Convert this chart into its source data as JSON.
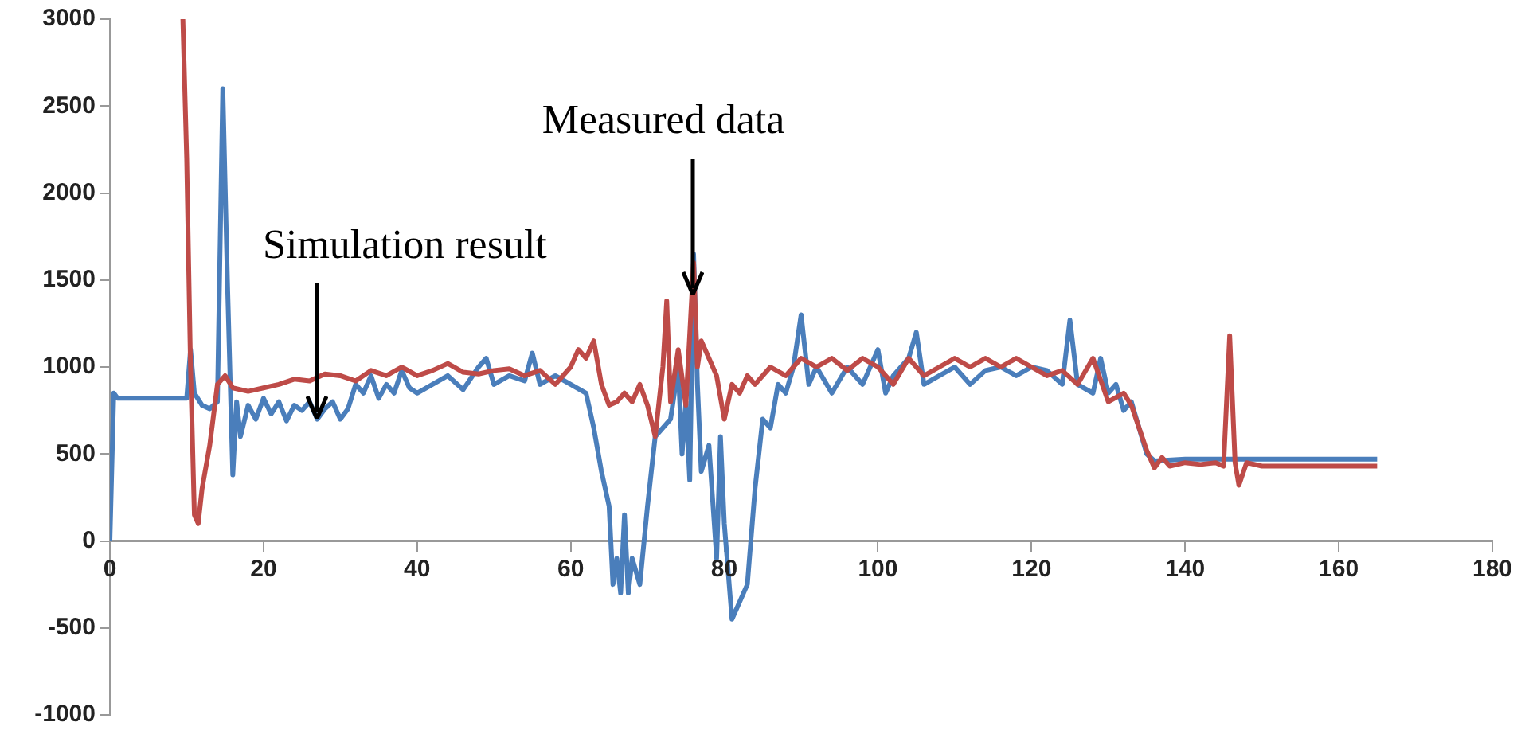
{
  "chart_data": {
    "type": "line",
    "xlim": [
      0,
      180
    ],
    "xticks": [
      0,
      20,
      40,
      60,
      80,
      100,
      120,
      140,
      160,
      180
    ],
    "ylim": [
      -1000,
      3000
    ],
    "yticks": [
      -1000,
      -500,
      0,
      500,
      1000,
      1500,
      2000,
      2500,
      3000
    ],
    "grid": false,
    "legend": false,
    "marker": "none",
    "annotations": [
      {
        "text": "Simulation result",
        "x": 27,
        "y": 700
      },
      {
        "text": "Measured data",
        "x": 76,
        "y": 1420
      }
    ],
    "series": [
      {
        "color": "#4a7ebb",
        "x": [
          0,
          0.5,
          1,
          5,
          10,
          10.5,
          11,
          12,
          13,
          14,
          14.7,
          15.3,
          16,
          16.5,
          17,
          18,
          19,
          20,
          21,
          22,
          23,
          24,
          25,
          26,
          27,
          28,
          29,
          30,
          31,
          32,
          33,
          34,
          35,
          36,
          37,
          38,
          39,
          40,
          42,
          44,
          46,
          48,
          49,
          50,
          52,
          54,
          55,
          56,
          58,
          60,
          62,
          63,
          64,
          65,
          65.5,
          66,
          66.5,
          67,
          67.5,
          68,
          69,
          70,
          71,
          72,
          73,
          74,
          74.5,
          75,
          75.5,
          76,
          76.5,
          77,
          78,
          79,
          79.5,
          80,
          81,
          82,
          83,
          84,
          85,
          86,
          87,
          88,
          89,
          90,
          91,
          92,
          94,
          96,
          98,
          100,
          101,
          102,
          104,
          105,
          106,
          108,
          110,
          112,
          114,
          116,
          118,
          120,
          122,
          124,
          125,
          126,
          128,
          129,
          130,
          131,
          132,
          133,
          134,
          135,
          136,
          140,
          150,
          165
        ],
        "values": [
          0,
          850,
          820,
          820,
          820,
          1100,
          850,
          780,
          760,
          800,
          2600,
          1500,
          380,
          800,
          600,
          780,
          700,
          820,
          730,
          800,
          690,
          780,
          750,
          800,
          700,
          760,
          800,
          700,
          760,
          900,
          850,
          950,
          820,
          900,
          850,
          980,
          880,
          850,
          900,
          950,
          870,
          1000,
          1050,
          900,
          950,
          920,
          1080,
          900,
          950,
          900,
          850,
          650,
          400,
          200,
          -250,
          -100,
          -300,
          150,
          -300,
          -100,
          -250,
          200,
          600,
          650,
          700,
          1000,
          500,
          800,
          350,
          1650,
          900,
          400,
          550,
          -100,
          600,
          100,
          -450,
          -350,
          -250,
          300,
          700,
          650,
          900,
          850,
          1000,
          1300,
          900,
          1000,
          850,
          1000,
          900,
          1100,
          850,
          950,
          1050,
          1200,
          900,
          950,
          1000,
          900,
          980,
          1000,
          950,
          1000,
          980,
          900,
          1270,
          900,
          850,
          1050,
          850,
          900,
          750,
          800,
          650,
          500,
          460,
          470,
          470,
          470
        ]
      },
      {
        "color": "#be4b48",
        "x": [
          9.5,
          10,
          10.5,
          11,
          11.5,
          12,
          13,
          14,
          15,
          16,
          18,
          20,
          22,
          24,
          26,
          28,
          30,
          32,
          34,
          36,
          38,
          40,
          42,
          44,
          46,
          48,
          50,
          52,
          54,
          56,
          58,
          60,
          61,
          62,
          63,
          64,
          65,
          66,
          67,
          68,
          69,
          70,
          71,
          72,
          72.5,
          73,
          74,
          75,
          76,
          76.5,
          77,
          78,
          79,
          80,
          81,
          82,
          83,
          84,
          86,
          88,
          90,
          92,
          94,
          96,
          98,
          100,
          102,
          104,
          106,
          108,
          110,
          112,
          114,
          116,
          118,
          120,
          122,
          124,
          126,
          128,
          130,
          132,
          133,
          134,
          135,
          136,
          137,
          138,
          140,
          142,
          144,
          145,
          145.8,
          146.5,
          147,
          148,
          150,
          165
        ],
        "values": [
          3000,
          2200,
          1000,
          150,
          100,
          300,
          550,
          900,
          950,
          880,
          860,
          880,
          900,
          930,
          920,
          960,
          950,
          920,
          980,
          950,
          1000,
          950,
          980,
          1020,
          970,
          960,
          980,
          990,
          950,
          980,
          900,
          1000,
          1100,
          1050,
          1150,
          900,
          780,
          800,
          850,
          800,
          900,
          780,
          600,
          1000,
          1380,
          800,
          1100,
          780,
          1600,
          1000,
          1150,
          1050,
          950,
          700,
          900,
          850,
          950,
          900,
          1000,
          950,
          1050,
          1000,
          1050,
          980,
          1050,
          1000,
          900,
          1050,
          950,
          1000,
          1050,
          1000,
          1050,
          1000,
          1050,
          1000,
          950,
          980,
          900,
          1050,
          800,
          850,
          780,
          650,
          520,
          420,
          480,
          430,
          450,
          440,
          450,
          430,
          1180,
          450,
          320,
          450,
          430,
          430
        ]
      }
    ]
  }
}
